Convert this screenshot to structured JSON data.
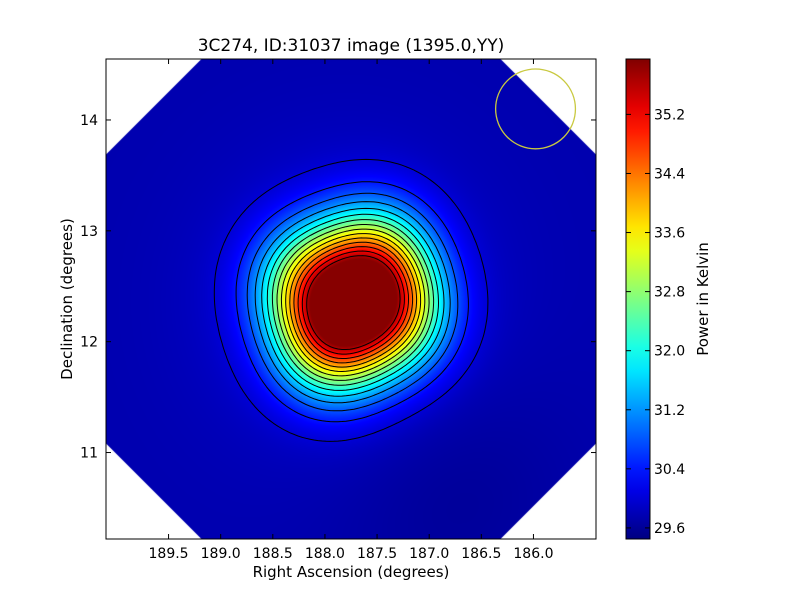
{
  "chart_data": [
    {
      "type": "heatmap",
      "title": "3C274, ID:31037 image (1395.0,YY)",
      "xlabel": "Right Ascension (degrees)",
      "ylabel": "Declination (degrees)",
      "xlim": [
        190.1,
        185.4
      ],
      "ylim": [
        10.22,
        14.55
      ],
      "x_ticks": [
        "189.5",
        "189.0",
        "188.5",
        "188.0",
        "187.5",
        "187.0",
        "186.5",
        "186.0"
      ],
      "y_ticks": [
        "11",
        "12",
        "13",
        "14"
      ],
      "colormap": "jet",
      "background_level": 29.75,
      "sources": [
        {
          "ra": 187.92,
          "dec": 12.01,
          "peak": 35.9
        },
        {
          "ra": 187.53,
          "dec": 12.71,
          "peak": 35.3
        },
        {
          "ra": 187.37,
          "dec": 12.24,
          "peak": 35.2
        },
        {
          "ra": 188.1,
          "dec": 12.52,
          "peak": 35.05
        }
      ],
      "contours": true,
      "contour_color": "#000000",
      "beam_marker": {
        "ra": 185.98,
        "dec": 14.1,
        "radius_deg": 0.36,
        "color": "#c9c940"
      },
      "colorbar": {
        "label": "Power in Kelvin",
        "min": 29.45,
        "max": 35.95,
        "ticks": [
          "35.2",
          "34.4",
          "33.6",
          "32.8",
          "32.0",
          "31.2",
          "30.4",
          "29.6"
        ]
      }
    }
  ]
}
